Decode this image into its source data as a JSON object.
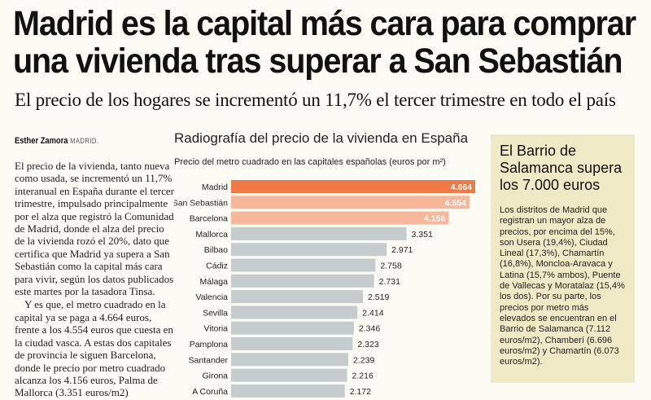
{
  "headline": {
    "line1": "Madrid es la capital más cara para comprar",
    "line2": "una vivienda tras superar a San Sebastián"
  },
  "subtitle": "El precio de los hogares se incrementó un 11,7% el tercer trimestre en todo el país",
  "byline": {
    "author": "Esther Zamora",
    "location": "MADRID."
  },
  "article": {
    "paragraph1": "El precio de la vivienda, tanto nueva como usada, se incrementó un 11,7% interanual en España durante el tercer trimestre, impulsado principalmente por el alza que registró la Comunidad de Madrid, donde el alza del precio de la vivienda rozó el 20%, dato que certifica que Madrid ya supera a San Sebastián como la capital más cara para vivir, según los datos publicados este martes por la tasadora Tinsa.",
    "paragraph2": "Y es que, el metro cuadrado en la capital ya se paga a 4.664 euros, frente a los 4.554 euros que cuesta en la ciudad vasca. A estas dos capitales de provincia le siguen Barcelona, donde le precio por metro cuadrado alcanza los 4.156 euros, Palma de Mallorca (3.351 euros/m2)"
  },
  "sidebar": {
    "title": "El Barrio de Salamanca supera los 7.000 euros",
    "body": "Los distritos de Madrid que registran un mayor alza de precios, por encima del 15%, son Usera (19,4%), Ciudad Lineal (17,3%), Chamartín (16,8%), Moncloa-Aravaca y Latina (15,7% ambos), Puente de Vallecas y Moratalaz (15,4% los dos). Por su parte, los precios por metro más elevados se encuentran en el Barrio de Salamanca (7.112 euros/m2), Chamberí (6.696 euros/m2) y Chamartín (6.073 euros/m2)."
  },
  "chart_data": {
    "type": "bar",
    "orientation": "horizontal",
    "title": "Radiografía del precio de la vivienda en España",
    "subtitle": "Precio del metro cuadrado en las capitales españolas (euros por m²)",
    "categories": [
      "Madrid",
      "San Sebastián",
      "Barcelona",
      "Mallorca",
      "Bilbao",
      "Cádiz",
      "Málaga",
      "Valencia",
      "Sevilla",
      "Vitoria",
      "Pamplona",
      "Santander",
      "Girona",
      "A Coruña"
    ],
    "values": [
      4664,
      4554,
      4156,
      3351,
      2971,
      2758,
      2731,
      2519,
      2414,
      2346,
      2323,
      2239,
      2216,
      2172
    ],
    "value_labels": [
      "4.664",
      "4.554",
      "4.156",
      "3.351",
      "2.971",
      "2.758",
      "2.731",
      "2.519",
      "2.414",
      "2.346",
      "2.323",
      "2.239",
      "2.216",
      "2.172"
    ],
    "xlim": [
      0,
      4664
    ],
    "colors": {
      "highlight": "#ef7a45",
      "secondary": "#f7b79a",
      "default": "#c5cccd",
      "highlight_label": "#ffffff",
      "secondary_label": "#ffffff",
      "default_label": "#222222"
    }
  }
}
